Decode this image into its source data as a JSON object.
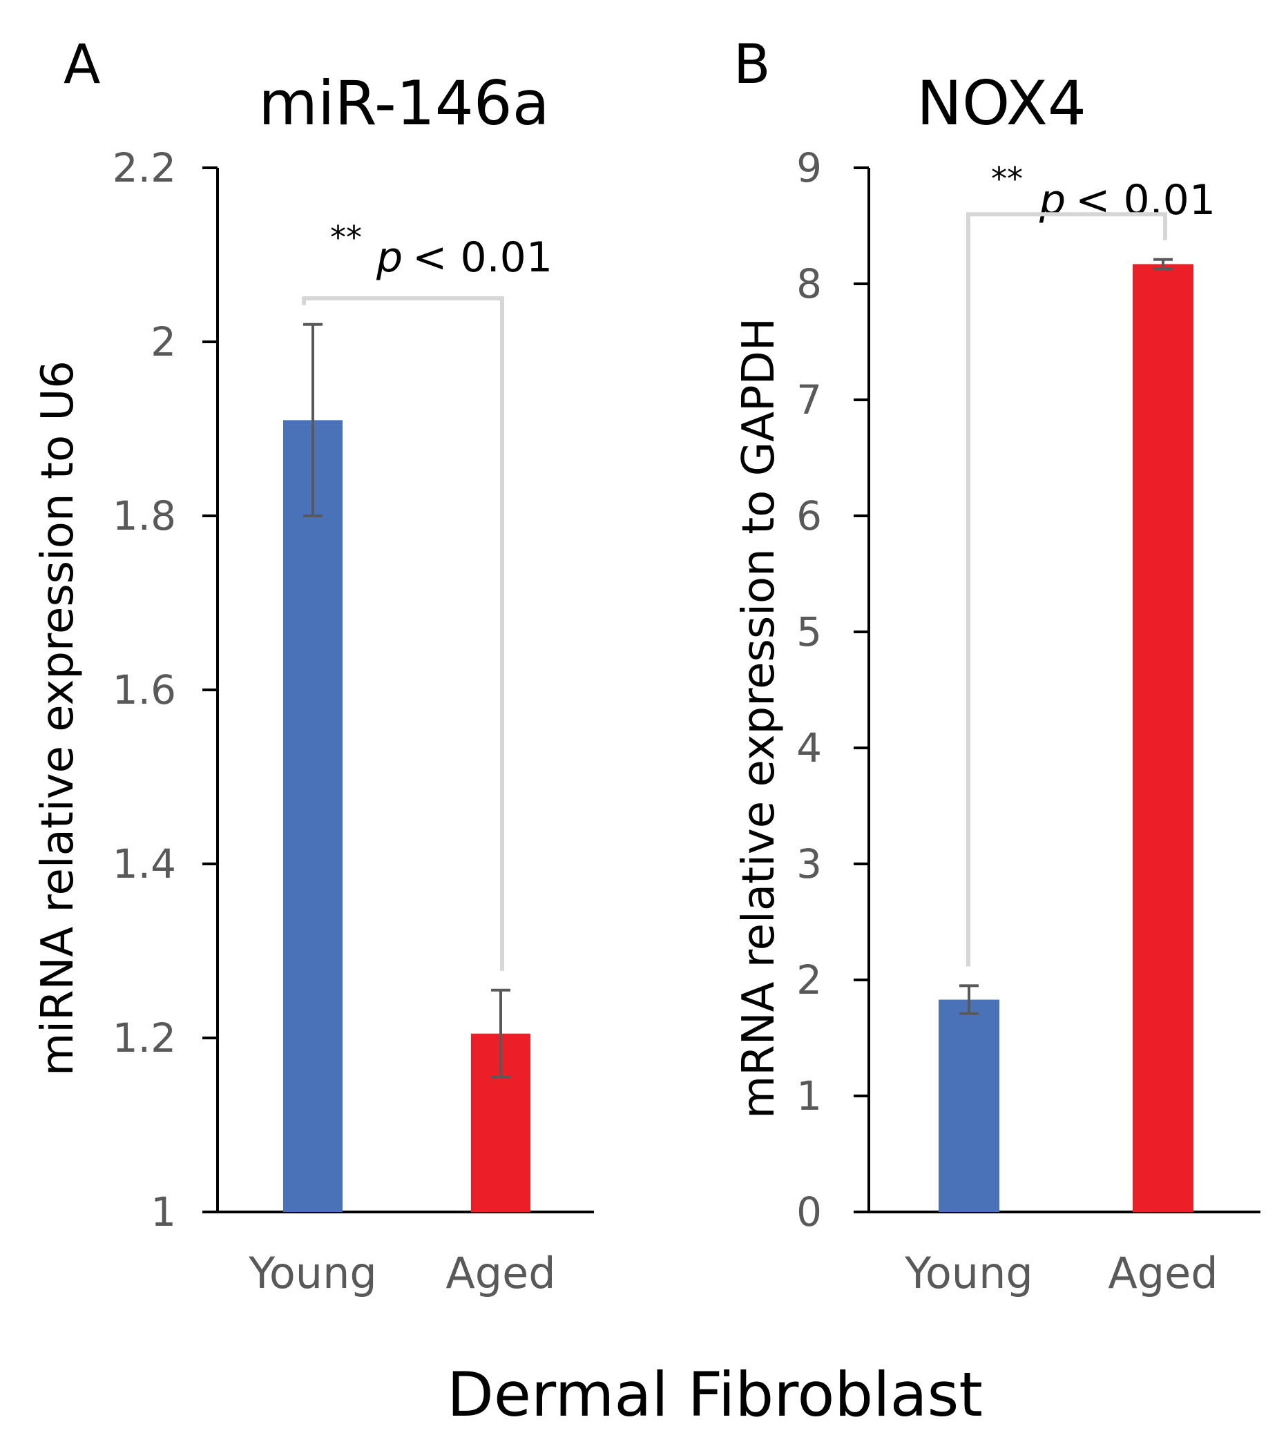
{
  "figure": {
    "xlabel": "Dermal Fibroblast"
  },
  "colors": {
    "young": "#4a72b8",
    "aged": "#ec1e27",
    "axis": "#000000",
    "tick_text": "#595959",
    "bracket": "#d6d6d6",
    "errorbar": "#595959"
  },
  "chart_data": [
    {
      "panel": "A",
      "type": "bar",
      "title": "miR-146a",
      "ylabel": "miRNA relative expression to U6",
      "xlabel": "",
      "categories": [
        "Young",
        "Aged"
      ],
      "values": [
        1.91,
        1.205
      ],
      "errors": [
        0.11,
        0.05
      ],
      "ylim": [
        1,
        2.2
      ],
      "yticks": [
        1,
        1.2,
        1.4,
        1.6,
        1.8,
        2,
        2.2
      ],
      "ytick_labels": [
        "1",
        "1.2",
        "1.4",
        "1.6",
        "1.8",
        "2",
        "2.2"
      ],
      "grid": false,
      "significance": {
        "stars": "**",
        "p_symbol": "p",
        "p_text": "< 0.01",
        "bracket_value": 2.05
      }
    },
    {
      "panel": "B",
      "type": "bar",
      "title": "NOX4",
      "ylabel": "mRNA relative expression to GAPDH",
      "xlabel": "",
      "categories": [
        "Young",
        "Aged"
      ],
      "values": [
        1.83,
        8.17
      ],
      "errors": [
        0.12,
        0.04
      ],
      "ylim": [
        0,
        9
      ],
      "yticks": [
        0,
        1,
        2,
        3,
        4,
        5,
        6,
        7,
        8,
        9
      ],
      "ytick_labels": [
        "0",
        "1",
        "2",
        "3",
        "4",
        "5",
        "6",
        "7",
        "8",
        "9"
      ],
      "grid": false,
      "significance": {
        "stars": "**",
        "p_symbol": "p",
        "p_text": "< 0.01",
        "bracket_value": 8.6
      }
    }
  ]
}
